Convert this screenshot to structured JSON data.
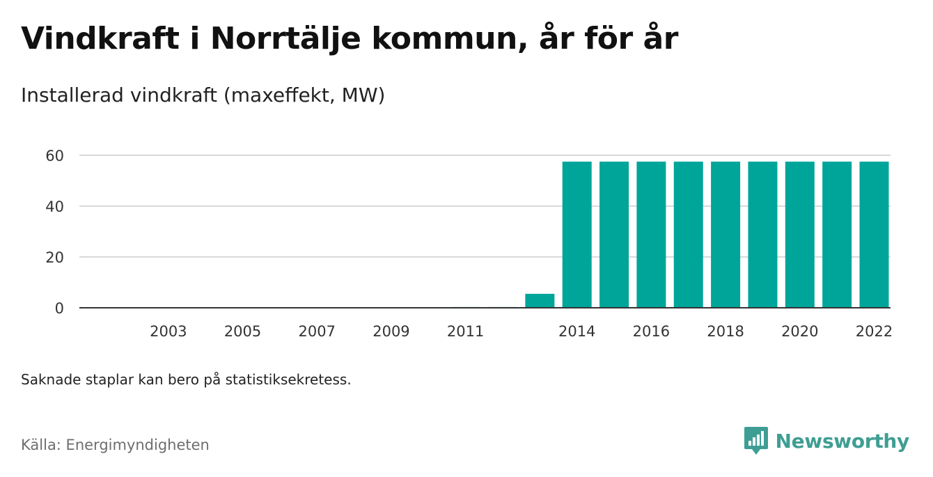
{
  "header": {
    "title": "Vindkraft i Norrtälje kommun, år för år",
    "subtitle": "Installerad vindkraft (maxeffekt, MW)"
  },
  "footer": {
    "note": "Saknade staplar kan bero på statistiksekretess.",
    "source": "Källa: Energimyndigheten",
    "brand_name": "Newsworthy"
  },
  "colors": {
    "bar": "#00a59a",
    "brand": "#3f9e93",
    "grid": "#d9d9d9",
    "axis": "#333333"
  },
  "chart_data": {
    "type": "bar",
    "categories": [
      "2002",
      "2003",
      "2004",
      "2005",
      "2006",
      "2007",
      "2008",
      "2009",
      "2010",
      "2011",
      "2012",
      "2013",
      "2014",
      "2015",
      "2016",
      "2017",
      "2018",
      "2019",
      "2020",
      "2021",
      "2022"
    ],
    "tick_labels": [
      "2003",
      "2005",
      "2007",
      "2009",
      "2011",
      "2014",
      "2016",
      "2018",
      "2020",
      "2022"
    ],
    "values": [
      0,
      0,
      0,
      0,
      0,
      0,
      0,
      0,
      0,
      0.3,
      0.3,
      5.5,
      57.5,
      57.5,
      57.5,
      57.5,
      57.5,
      57.5,
      57.5,
      57.5,
      57.5
    ],
    "ylim": [
      0,
      60
    ],
    "yticks": [
      0,
      20,
      40,
      60
    ],
    "grid": true,
    "xlabel": "",
    "ylabel": ""
  }
}
